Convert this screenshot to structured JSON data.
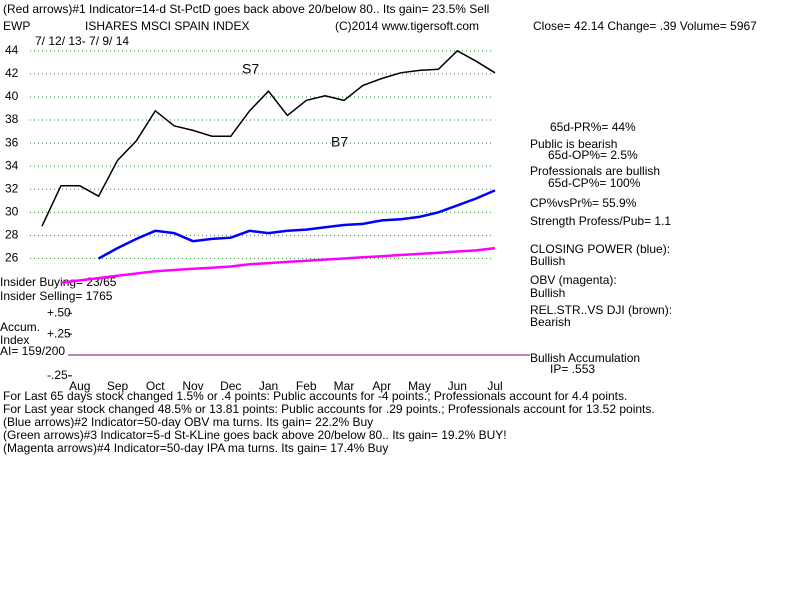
{
  "chart_data": {
    "type": "line",
    "header": [
      "(Red arrows)#1 Indicator=14-d St-PctD goes back above 20/below 80.. Its gain= 23.5% Sell",
      "EWP",
      "ISHARES MSCI SPAIN INDEX",
      "(C)2014 www.tigersoft.com",
      "Close=  42.14  Change= .39 Volume= 5967",
      "7/ 12/ 13-  7/ 9/ 14"
    ],
    "right_notes": [
      "65d-PR%= 44%",
      "Public is bearish",
      "65d-OP%= 2.5%",
      "Professionals are bullish",
      "65d-CP%= 100%",
      "CP%vsPr%=  55.9%",
      "Strength Profess/Pub= 1.1",
      "CLOSING POWER (blue):",
      "Bullish",
      "OBV (magenta):",
      "Bullish",
      "REL.STR..VS DJI (brown):",
      "Bearish",
      "Bullish Accumulation",
      "IP=  .553"
    ],
    "left_notes": [
      "Insider Buying= 23/65",
      "Insider Selling= 1765",
      "Accum.",
      "Index",
      "AI= 159/200"
    ],
    "signals": [
      "S7",
      "B7"
    ],
    "footer": [
      "For Last 65 days stock changed  1.5% or  .4 points:  Public accounts for -4 points.;  Professionals account for  4.4 points.",
      "For Last year stock changed  48.5% or  13.81 points:  Public accounts for  .29 points.;  Professionals account for  13.52 points.",
      "(Blue arrows)#2 Indicator=50-day OBV ma turns. Its gain= 22.2% Buy",
      "(Green arrows)#3 Indicator=5-d St-KLine goes back above 20/below 80.. Its gain= 19.2% BUY!",
      "(Magenta arrows)#4 Indicator=50-day IPA ma turns. Its gain= 17.4% Buy"
    ],
    "categories": [
      null,
      null,
      "Aug",
      null,
      "Sep",
      null,
      "Oct",
      null,
      "Nov",
      null,
      "Dec",
      null,
      "Jan",
      null,
      "Feb",
      null,
      "Mar",
      null,
      "Apr",
      null,
      "May",
      null,
      "Jun",
      null,
      "Jul"
    ],
    "series": [
      {
        "name": "Close",
        "color": "#000000",
        "values": [
          28.8,
          32.3,
          32.3,
          31.4,
          34.5,
          36.2,
          38.8,
          37.5,
          37.1,
          36.6,
          36.6,
          38.8,
          40.5,
          38.4,
          39.7,
          40.1,
          39.7,
          41.0,
          41.6,
          42.1,
          42.3,
          42.4,
          44.0,
          43.1,
          42.1
        ]
      },
      {
        "name": "CLOSING POWER",
        "color": "#0000ff",
        "values": [
          null,
          null,
          null,
          26.0,
          26.9,
          27.7,
          28.4,
          28.2,
          27.5,
          27.7,
          27.8,
          28.4,
          28.2,
          28.4,
          28.5,
          28.7,
          28.9,
          29.0,
          29.3,
          29.4,
          29.6,
          30.0,
          30.6,
          31.2,
          31.9
        ]
      },
      {
        "name": "OBV",
        "color": "#ff00ff",
        "values": [
          null,
          23.9,
          24.1,
          24.3,
          24.5,
          24.7,
          24.9,
          25.0,
          25.1,
          25.2,
          25.3,
          25.5,
          25.6,
          25.7,
          25.8,
          25.9,
          26.0,
          26.1,
          26.2,
          26.3,
          26.4,
          26.5,
          26.6,
          26.7,
          26.9
        ]
      }
    ],
    "ylim": [
      25,
      46.5
    ],
    "yticks": [
      26,
      28,
      30,
      32,
      34,
      36,
      38,
      40,
      42,
      44
    ],
    "y2lim": [
      -0.3,
      0.6
    ],
    "y2ticks": [
      {
        "value": 0.5,
        "label": "+.50"
      },
      {
        "value": 0.25,
        "label": "+.25"
      },
      {
        "value": -0.25,
        "label": "-.25"
      }
    ],
    "grid": true
  }
}
